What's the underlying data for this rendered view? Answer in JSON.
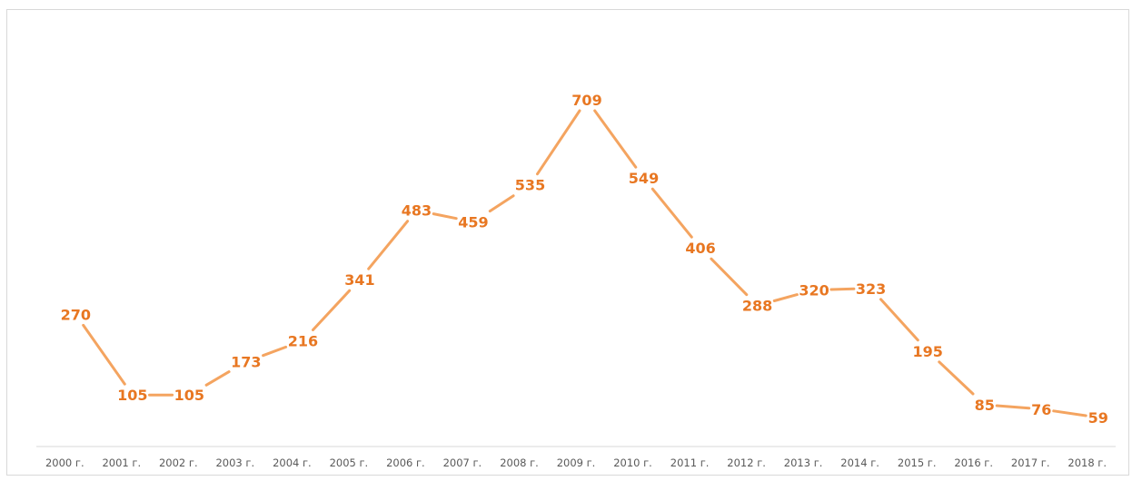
{
  "chart_data": {
    "type": "line",
    "title": "",
    "xlabel": "",
    "ylabel": "",
    "categories": [
      "2000 г.",
      "2001 г.",
      "2002 г.",
      "2003 г.",
      "2004 г.",
      "2005 г.",
      "2006 г.",
      "2007 г.",
      "2008 г.",
      "2009 г.",
      "2010 г.",
      "2011 г.",
      "2012 г.",
      "2013 г.",
      "2014 г.",
      "2015 г.",
      "2016 г.",
      "2017 г.",
      "2018 г."
    ],
    "series": [
      {
        "values": [
          270,
          105,
          105,
          173,
          216,
          341,
          483,
          459,
          535,
          709,
          549,
          406,
          288,
          320,
          323,
          195,
          85,
          76,
          59
        ]
      }
    ],
    "ylim": [
      0,
      760
    ],
    "grid": false,
    "legend": "none",
    "data_labels": true,
    "line_color": "#F4A460",
    "label_color": "#E87722",
    "axis_color": "#d9d9d9"
  }
}
